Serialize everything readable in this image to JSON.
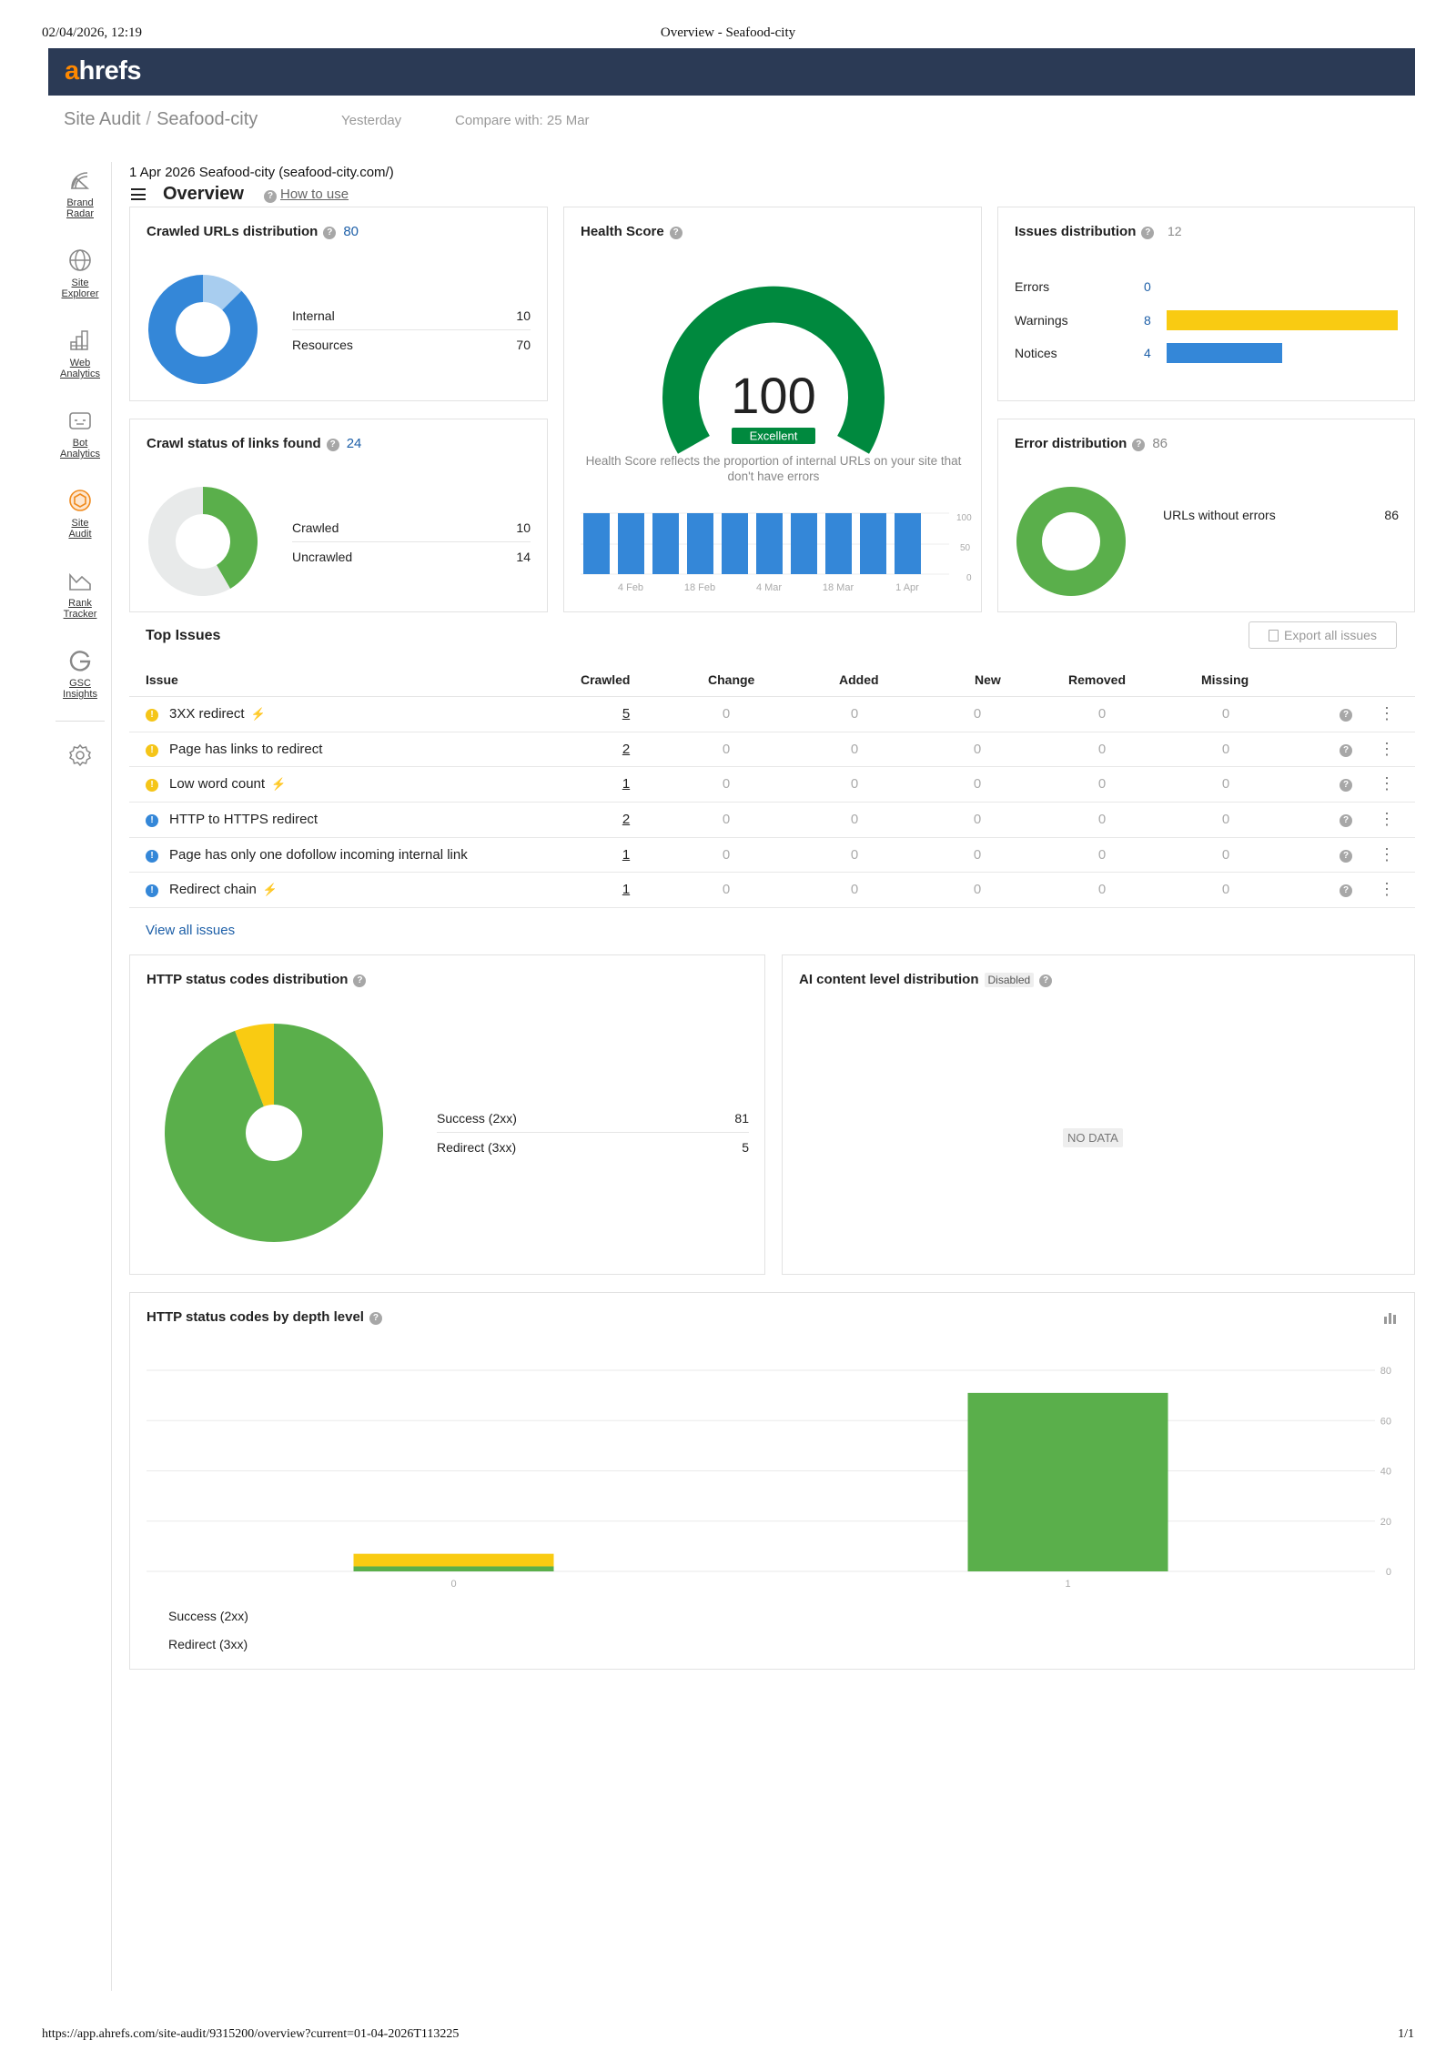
{
  "print": {
    "date": "02/04/2026, 12:19",
    "title": "Overview - Seafood-city",
    "url": "https://app.ahrefs.com/site-audit/9315200/overview?current=01-04-2026T113225",
    "pages": "1/1"
  },
  "brand": {
    "logo_a": "a",
    "logo_rest": "hrefs"
  },
  "breadcrumb": {
    "section": "Site Audit",
    "sep": "/",
    "project": "Seafood-city"
  },
  "subheader": {
    "crawl_date": "Yesterday",
    "compare": "Compare with: 25 Mar"
  },
  "sidebar": {
    "items": [
      {
        "label1": "Brand",
        "label2": "Radar",
        "icon": "radar-icon"
      },
      {
        "label1": "Site",
        "label2": "Explorer",
        "icon": "globe-icon"
      },
      {
        "label1": "Web",
        "label2": "Analytics",
        "icon": "grid-chart-icon"
      },
      {
        "label1": "Bot",
        "label2": "Analytics",
        "icon": "bot-icon"
      },
      {
        "label1": "Site",
        "label2": "Audit",
        "icon": "site-audit-icon"
      },
      {
        "label1": "Rank",
        "label2": "Tracker",
        "icon": "line-chart-icon"
      },
      {
        "label1": "GSC",
        "label2": "Insights",
        "icon": "google-g-icon"
      }
    ],
    "settings_icon": "gear-icon"
  },
  "page": {
    "meta": "1 Apr 2026 Seafood-city (seafood-city.com/)",
    "title": "Overview",
    "how_to": "How to use"
  },
  "crawled_urls": {
    "title": "Crawled URLs distribution",
    "total": "80",
    "rows": [
      {
        "label": "Internal",
        "value": "10"
      },
      {
        "label": "Resources",
        "value": "70"
      }
    ]
  },
  "crawl_status": {
    "title": "Crawl status of links found",
    "total": "24",
    "rows": [
      {
        "label": "Crawled",
        "value": "10"
      },
      {
        "label": "Uncrawled",
        "value": "14"
      }
    ]
  },
  "health_score": {
    "title": "Health Score",
    "score": "100",
    "rating": "Excellent",
    "description": "Health Score reflects the proportion of internal URLs on your site that don't have errors",
    "history_x_labels": [
      "4 Feb",
      "18 Feb",
      "4 Mar",
      "18 Mar",
      "1 Apr"
    ],
    "history_y_ticks": [
      "100",
      "50",
      "0"
    ],
    "history_values": [
      100,
      100,
      100,
      100,
      100,
      100,
      100,
      100,
      100,
      100
    ]
  },
  "issues_distribution": {
    "title": "Issues distribution",
    "total": "12",
    "rows": [
      {
        "label": "Errors",
        "value": "0"
      },
      {
        "label": "Warnings",
        "value": "8"
      },
      {
        "label": "Notices",
        "value": "4"
      }
    ],
    "colors": {
      "errors": "#d93025",
      "warnings": "#f9cb12",
      "notices": "#3487d8"
    }
  },
  "error_distribution": {
    "title": "Error distribution",
    "total": "86",
    "rows": [
      {
        "label": "URLs without errors",
        "value": "86"
      }
    ]
  },
  "top_issues": {
    "title": "Top Issues",
    "export_label": "Export all issues",
    "columns": [
      "Issue",
      "Crawled",
      "Change",
      "Added",
      "New",
      "Removed",
      "Missing"
    ],
    "rows": [
      {
        "name": "3XX redirect",
        "bolt": true,
        "level": "warning",
        "crawled": "5",
        "change": "0",
        "added": "0",
        "new": "0",
        "removed": "0",
        "missing": "0"
      },
      {
        "name": "Page has links to redirect",
        "bolt": false,
        "level": "warning",
        "crawled": "2",
        "change": "0",
        "added": "0",
        "new": "0",
        "removed": "0",
        "missing": "0"
      },
      {
        "name": "Low word count",
        "bolt": true,
        "level": "warning",
        "crawled": "1",
        "change": "0",
        "added": "0",
        "new": "0",
        "removed": "0",
        "missing": "0"
      },
      {
        "name": "HTTP to HTTPS redirect",
        "bolt": false,
        "level": "notice",
        "crawled": "2",
        "change": "0",
        "added": "0",
        "new": "0",
        "removed": "0",
        "missing": "0"
      },
      {
        "name": "Page has only one dofollow incoming internal link",
        "bolt": false,
        "level": "notice",
        "crawled": "1",
        "change": "0",
        "added": "0",
        "new": "0",
        "removed": "0",
        "missing": "0"
      },
      {
        "name": "Redirect chain",
        "bolt": true,
        "level": "notice",
        "crawled": "1",
        "change": "0",
        "added": "0",
        "new": "0",
        "removed": "0",
        "missing": "0"
      }
    ],
    "view_all": "View all issues"
  },
  "http_status": {
    "title": "HTTP status codes distribution",
    "rows": [
      {
        "label": "Success (2xx)",
        "value": "81"
      },
      {
        "label": "Redirect (3xx)",
        "value": "5"
      }
    ],
    "colors": {
      "success": "#5aaf4b",
      "redirect": "#f9cb12"
    }
  },
  "ai_content": {
    "title": "AI content level distribution",
    "badge": "Disabled",
    "empty": "NO DATA"
  },
  "depth": {
    "title": "HTTP status codes by depth level",
    "chart_icon": "bar-chart-icon",
    "legend": [
      "Success (2xx)",
      "Redirect (3xx)"
    ]
  },
  "chart_data": [
    {
      "type": "pie",
      "title": "Crawled URLs distribution",
      "categories": [
        "Internal",
        "Resources"
      ],
      "values": [
        10,
        70
      ]
    },
    {
      "type": "pie",
      "title": "Crawl status of links found",
      "categories": [
        "Crawled",
        "Uncrawled"
      ],
      "values": [
        10,
        14
      ]
    },
    {
      "type": "bar",
      "title": "Health Score",
      "categories": [
        "",
        "4 Feb",
        "",
        "18 Feb",
        "",
        "4 Mar",
        "",
        "18 Mar",
        "",
        "1 Apr"
      ],
      "values": [
        100,
        100,
        100,
        100,
        100,
        100,
        100,
        100,
        100,
        100
      ],
      "ylim": [
        0,
        100
      ]
    },
    {
      "type": "bar",
      "title": "Issues distribution",
      "categories": [
        "Errors",
        "Warnings",
        "Notices"
      ],
      "values": [
        0,
        8,
        4
      ]
    },
    {
      "type": "pie",
      "title": "Error distribution",
      "categories": [
        "URLs without errors"
      ],
      "values": [
        86
      ]
    },
    {
      "type": "pie",
      "title": "HTTP status codes distribution",
      "categories": [
        "Success (2xx)",
        "Redirect (3xx)"
      ],
      "values": [
        81,
        5
      ]
    },
    {
      "type": "bar",
      "title": "HTTP status codes by depth level",
      "categories": [
        "0",
        "1"
      ],
      "series": [
        {
          "name": "Success (2xx)",
          "values": [
            2,
            71
          ]
        },
        {
          "name": "Redirect (3xx)",
          "values": [
            5,
            0
          ]
        }
      ],
      "ylim": [
        0,
        80
      ],
      "yticks": [
        0,
        20,
        40,
        60,
        80
      ],
      "stacked": true
    }
  ]
}
